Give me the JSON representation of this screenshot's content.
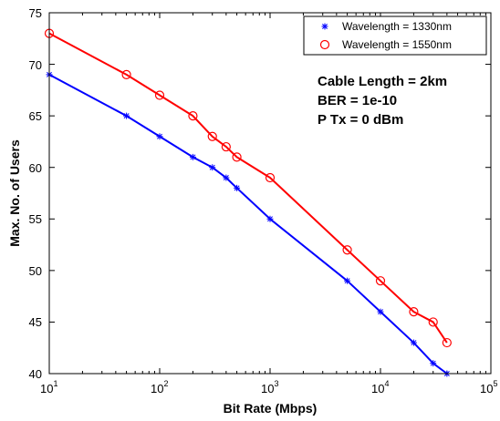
{
  "chart_data": {
    "type": "line",
    "xlabel": "Bit Rate (Mbps)",
    "ylabel": "Max. No. of Users",
    "x_scale": "log",
    "xlim": [
      10,
      100000
    ],
    "ylim": [
      40,
      75
    ],
    "x_ticks": [
      {
        "value": 10,
        "base": "10",
        "exp": "1"
      },
      {
        "value": 100,
        "base": "10",
        "exp": "2"
      },
      {
        "value": 1000,
        "base": "10",
        "exp": "3"
      },
      {
        "value": 10000,
        "base": "10",
        "exp": "4"
      },
      {
        "value": 100000,
        "base": "10",
        "exp": "5"
      }
    ],
    "y_ticks": [
      "40",
      "45",
      "50",
      "55",
      "60",
      "65",
      "70",
      "75"
    ],
    "grid": false,
    "legend_position": "top-right",
    "series": [
      {
        "name": "Wavelength = 1330nm",
        "color": "#0000ff",
        "marker": "asterisk",
        "x": [
          10,
          50,
          100,
          200,
          300,
          400,
          500,
          1000,
          5000,
          10000,
          20000,
          30000,
          40000
        ],
        "y": [
          69,
          65,
          63,
          61,
          60,
          59,
          58,
          55,
          49,
          46,
          43,
          41,
          40
        ]
      },
      {
        "name": "Wavelength = 1550nm",
        "color": "#ff0000",
        "marker": "circle",
        "x": [
          10,
          50,
          100,
          200,
          300,
          400,
          500,
          1000,
          5000,
          10000,
          20000,
          30000,
          40000
        ],
        "y": [
          73,
          69,
          67,
          65,
          63,
          62,
          61,
          59,
          52,
          49,
          46,
          45,
          43
        ]
      }
    ],
    "annotations": [
      "Cable Length = 2km",
      "BER = 1e-10",
      "P Tx = 0 dBm"
    ]
  }
}
